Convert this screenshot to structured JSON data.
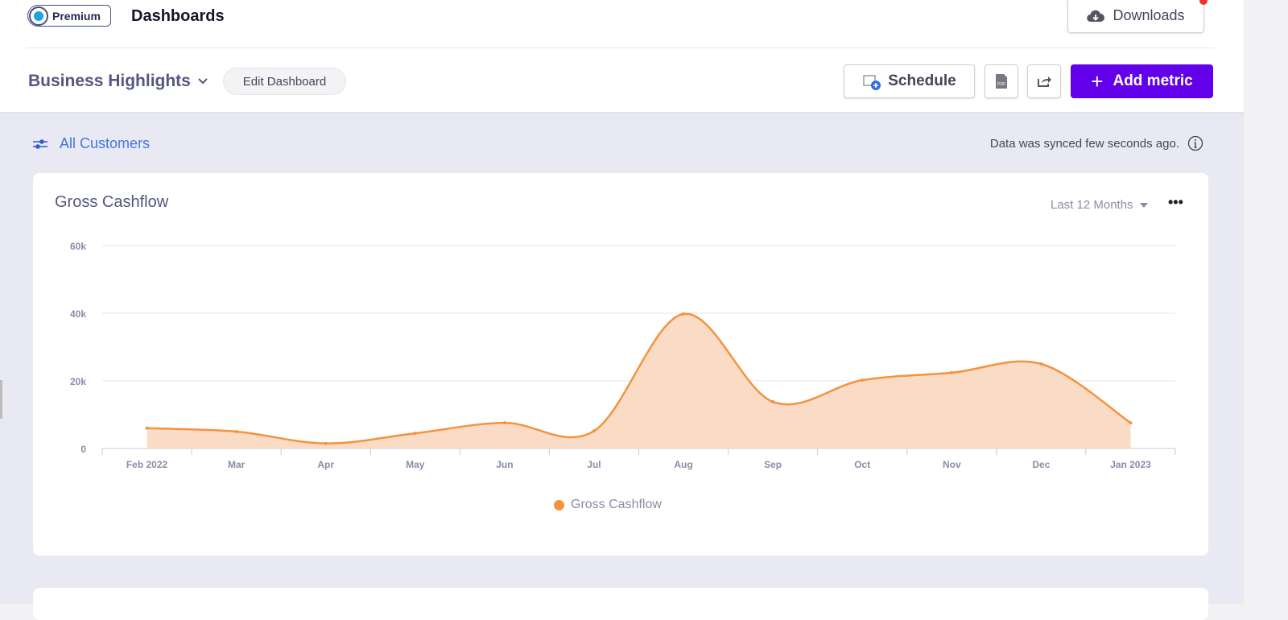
{
  "header": {
    "logo_text": "Premium",
    "title": "Dashboards",
    "downloads_label": "Downloads"
  },
  "toolbar": {
    "dashboard_name": "Business Highlights",
    "edit_label": "Edit Dashboard",
    "schedule_label": "Schedule",
    "pdf_label": "PDF",
    "add_metric_label": "Add metric"
  },
  "filter": {
    "label": "All Customers"
  },
  "sync": {
    "text": "Data was synced few seconds ago."
  },
  "card": {
    "title": "Gross Cashflow",
    "range": "Last 12 Months"
  },
  "colors": {
    "accent": "#6200ea",
    "series": "#f39340",
    "fill": "#fadcc6"
  },
  "chart_data": {
    "type": "area",
    "title": "Gross Cashflow",
    "xlabel": "",
    "ylabel": "",
    "categories": [
      "Feb 2022",
      "Mar",
      "Apr",
      "May",
      "Jun",
      "Jul",
      "Aug",
      "Sep",
      "Oct",
      "Nov",
      "Dec",
      "Jan 2023"
    ],
    "series": [
      {
        "name": "Gross Cashflow",
        "values": [
          6000,
          5000,
          1500,
          4500,
          7600,
          5200,
          39800,
          13800,
          20200,
          22400,
          25000,
          7600
        ]
      }
    ],
    "ylim": [
      0,
      60000
    ],
    "yticks": [
      {
        "v": 0,
        "label": "0"
      },
      {
        "v": 20000,
        "label": "20k"
      },
      {
        "v": 40000,
        "label": "40k"
      },
      {
        "v": 60000,
        "label": "60k"
      }
    ],
    "grid": true,
    "legend": "bottom"
  }
}
